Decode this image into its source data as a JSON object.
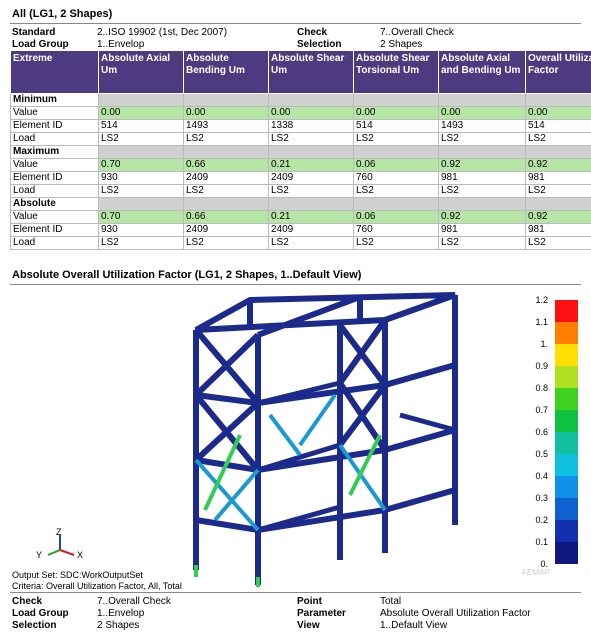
{
  "title": "All (LG1, 2 Shapes)",
  "info": [
    [
      "Standard",
      "2..ISO 19902 (1st, Dec 2007)",
      "Check",
      "7..Overall Check"
    ],
    [
      "Load Group",
      "1..Envelop",
      "Selection",
      "2 Shapes"
    ]
  ],
  "table": {
    "headers": [
      "Extreme",
      "Absolute Axial Um",
      "Absolute Bending Um",
      "Absolute Shear Um",
      "Absolute Shear Torsional Um",
      "Absolute Axial and Bending Um",
      "Overall Utilization Factor"
    ],
    "sections": [
      {
        "name": "Minimum",
        "rows": [
          [
            "Value",
            "0.00",
            "0.00",
            "0.00",
            "0.00",
            "0.00",
            "0.00"
          ],
          [
            "Element ID",
            "514",
            "1493",
            "1338",
            "514",
            "1493",
            "514"
          ],
          [
            "Load",
            "LS2",
            "LS2",
            "LS2",
            "LS2",
            "LS2",
            "LS2"
          ]
        ]
      },
      {
        "name": "Maximum",
        "rows": [
          [
            "Value",
            "0.70",
            "0.66",
            "0.21",
            "0.06",
            "0.92",
            "0.92"
          ],
          [
            "Element ID",
            "930",
            "2409",
            "2409",
            "760",
            "981",
            "981"
          ],
          [
            "Load",
            "LS2",
            "LS2",
            "LS2",
            "LS2",
            "LS2",
            "LS2"
          ]
        ]
      },
      {
        "name": "Absolute",
        "rows": [
          [
            "Value",
            "0.70",
            "0.66",
            "0.21",
            "0.06",
            "0.92",
            "0.92"
          ],
          [
            "Element ID",
            "930",
            "2409",
            "2409",
            "760",
            "981",
            "981"
          ],
          [
            "Load",
            "LS2",
            "LS2",
            "LS2",
            "LS2",
            "LS2",
            "LS2"
          ]
        ]
      }
    ]
  },
  "figure": {
    "title": "Absolute Overall Utilization Factor (LG1, 2 Shapes, 1..Default View)",
    "colorbar": [
      "1.2",
      "1.1",
      "1.",
      "0.9",
      "0.8",
      "0.7",
      "0.6",
      "0.5",
      "0.4",
      "0.3",
      "0.2",
      "0.1",
      "0."
    ],
    "axes": [
      "Z",
      "Y",
      "X"
    ],
    "output_set": "Output Set: SDC:WorkOutputSet",
    "criteria": "Criteria: Overall Utilization Factor, All, Total",
    "watermark": "FEMAP"
  },
  "footer": [
    [
      "Check",
      "7..Overall Check",
      "Point",
      "Total"
    ],
    [
      "Load Group",
      "1..Envelop",
      "Parameter",
      "Absolute Overall Utilization Factor"
    ],
    [
      "Selection",
      "2 Shapes",
      "View",
      "1..Default View"
    ]
  ]
}
